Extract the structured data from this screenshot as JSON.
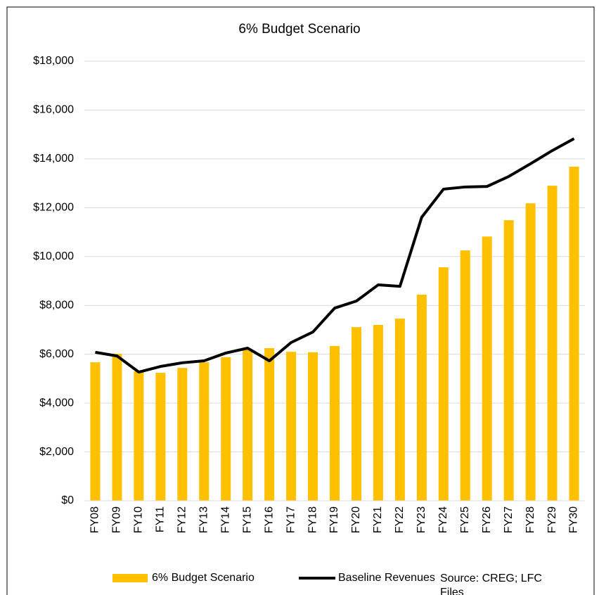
{
  "chart_data": {
    "type": "bar_line",
    "title": "6% Budget Scenario",
    "categories": [
      "FY08",
      "FY09",
      "FY10",
      "FY11",
      "FY12",
      "FY13",
      "FY14",
      "FY15",
      "FY16",
      "FY17",
      "FY18",
      "FY19",
      "FY20",
      "FY21",
      "FY22",
      "FY23",
      "FY24",
      "FY25",
      "FY26",
      "FY27",
      "FY28",
      "FY29",
      "FY30"
    ],
    "series": [
      {
        "name": "6% Budget Scenario",
        "type": "bar",
        "color": "#ffc000",
        "values": [
          5670,
          6020,
          5300,
          5240,
          5440,
          5670,
          5880,
          6190,
          6250,
          6100,
          6080,
          6340,
          7110,
          7200,
          7460,
          8440,
          9560,
          10250,
          10820,
          11490,
          12180,
          12900,
          13680
        ]
      },
      {
        "name": "Baseline Revenues",
        "type": "line",
        "color": "#000000",
        "values": [
          6080,
          5930,
          5270,
          5500,
          5650,
          5730,
          6050,
          6250,
          5730,
          6480,
          6910,
          7890,
          8180,
          8840,
          8780,
          11610,
          12760,
          12850,
          12870,
          13280,
          13800,
          14340,
          14830
        ]
      }
    ],
    "ylim": [
      0,
      18000
    ],
    "yticks": [
      {
        "value": 0,
        "label": "$0"
      },
      {
        "value": 2000,
        "label": "$2,000"
      },
      {
        "value": 4000,
        "label": "$4,000"
      },
      {
        "value": 6000,
        "label": "$6,000"
      },
      {
        "value": 8000,
        "label": "$8,000"
      },
      {
        "value": 10000,
        "label": "$10,000"
      },
      {
        "value": 12000,
        "label": "$12,000"
      },
      {
        "value": 14000,
        "label": "$14,000"
      },
      {
        "value": 16000,
        "label": "$16,000"
      },
      {
        "value": 18000,
        "label": "$18,000"
      }
    ],
    "grid": true,
    "legend": "bottom",
    "note": "Source: CREG; LFC Files"
  }
}
